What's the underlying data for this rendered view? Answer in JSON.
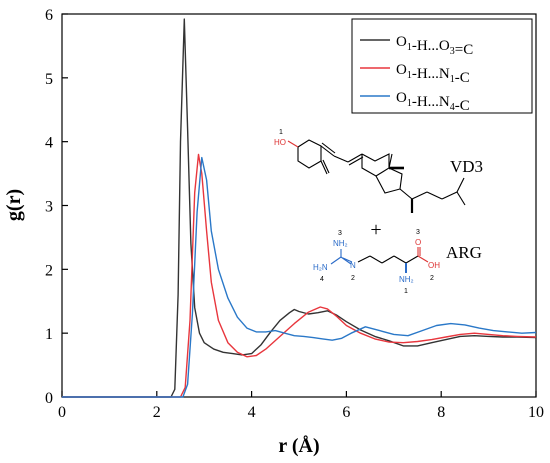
{
  "chart_data": {
    "type": "line",
    "xlabel": "r (Å)",
    "ylabel": "g(r)",
    "xlim": [
      0,
      10
    ],
    "ylim": [
      0,
      6
    ],
    "xticks": [
      "0",
      "2",
      "4",
      "6",
      "8",
      "10"
    ],
    "yticks": [
      "0",
      "1",
      "2",
      "3",
      "4",
      "5",
      "6"
    ],
    "grid": false,
    "legend_position": "top-right",
    "series": [
      {
        "name": "O1-H...O3=C",
        "legend": {
          "a": "O",
          "a_sub": "1",
          "b": "-H...O",
          "b_sub": "3",
          "c": "=C"
        },
        "color": "#333333",
        "points": [
          [
            0,
            0
          ],
          [
            2.3,
            0
          ],
          [
            2.38,
            0.12
          ],
          [
            2.45,
            1.6
          ],
          [
            2.5,
            4.0
          ],
          [
            2.58,
            5.92
          ],
          [
            2.65,
            4.2
          ],
          [
            2.72,
            2.4
          ],
          [
            2.8,
            1.4
          ],
          [
            2.9,
            1.0
          ],
          [
            3.0,
            0.85
          ],
          [
            3.2,
            0.75
          ],
          [
            3.4,
            0.7
          ],
          [
            3.6,
            0.68
          ],
          [
            3.8,
            0.66
          ],
          [
            4.0,
            0.68
          ],
          [
            4.2,
            0.82
          ],
          [
            4.4,
            1.02
          ],
          [
            4.6,
            1.2
          ],
          [
            4.8,
            1.32
          ],
          [
            4.9,
            1.37
          ],
          [
            5.0,
            1.34
          ],
          [
            5.2,
            1.3
          ],
          [
            5.4,
            1.32
          ],
          [
            5.6,
            1.35
          ],
          [
            5.8,
            1.28
          ],
          [
            6.0,
            1.18
          ],
          [
            6.3,
            1.05
          ],
          [
            6.6,
            0.95
          ],
          [
            6.9,
            0.88
          ],
          [
            7.2,
            0.8
          ],
          [
            7.5,
            0.8
          ],
          [
            7.8,
            0.85
          ],
          [
            8.1,
            0.9
          ],
          [
            8.4,
            0.95
          ],
          [
            8.7,
            0.96
          ],
          [
            9.0,
            0.95
          ],
          [
            9.3,
            0.94
          ],
          [
            9.6,
            0.94
          ],
          [
            10.0,
            0.93
          ]
        ]
      },
      {
        "name": "O1-H...N1-C",
        "legend": {
          "a": "O",
          "a_sub": "1",
          "b": "-H...N",
          "b_sub": "1",
          "c": "-C"
        },
        "color": "#e8363d",
        "points": [
          [
            0,
            0
          ],
          [
            2.5,
            0
          ],
          [
            2.6,
            0.15
          ],
          [
            2.7,
            1.2
          ],
          [
            2.8,
            3.2
          ],
          [
            2.88,
            3.8
          ],
          [
            2.95,
            3.5
          ],
          [
            3.05,
            2.6
          ],
          [
            3.15,
            1.8
          ],
          [
            3.3,
            1.2
          ],
          [
            3.5,
            0.85
          ],
          [
            3.7,
            0.7
          ],
          [
            3.9,
            0.63
          ],
          [
            4.1,
            0.65
          ],
          [
            4.3,
            0.75
          ],
          [
            4.6,
            0.95
          ],
          [
            4.9,
            1.15
          ],
          [
            5.2,
            1.33
          ],
          [
            5.45,
            1.41
          ],
          [
            5.6,
            1.38
          ],
          [
            5.8,
            1.26
          ],
          [
            6.0,
            1.12
          ],
          [
            6.3,
            1.0
          ],
          [
            6.6,
            0.91
          ],
          [
            6.9,
            0.86
          ],
          [
            7.2,
            0.85
          ],
          [
            7.5,
            0.87
          ],
          [
            7.8,
            0.9
          ],
          [
            8.1,
            0.94
          ],
          [
            8.4,
            0.98
          ],
          [
            8.7,
            1.0
          ],
          [
            9.0,
            0.98
          ],
          [
            9.3,
            0.96
          ],
          [
            9.6,
            0.95
          ],
          [
            10.0,
            0.94
          ]
        ]
      },
      {
        "name": "O1-H...N4-C",
        "legend": {
          "a": "O",
          "a_sub": "1",
          "b": "-H...N",
          "b_sub": "4",
          "c": "-C"
        },
        "color": "#2a78c8",
        "points": [
          [
            0,
            0
          ],
          [
            2.55,
            0
          ],
          [
            2.65,
            0.2
          ],
          [
            2.75,
            1.3
          ],
          [
            2.85,
            2.9
          ],
          [
            2.95,
            3.75
          ],
          [
            3.05,
            3.4
          ],
          [
            3.15,
            2.6
          ],
          [
            3.3,
            2.0
          ],
          [
            3.5,
            1.55
          ],
          [
            3.7,
            1.25
          ],
          [
            3.9,
            1.08
          ],
          [
            4.1,
            1.02
          ],
          [
            4.3,
            1.02
          ],
          [
            4.5,
            1.04
          ],
          [
            4.7,
            1.0
          ],
          [
            4.9,
            0.96
          ],
          [
            5.1,
            0.95
          ],
          [
            5.3,
            0.93
          ],
          [
            5.5,
            0.91
          ],
          [
            5.7,
            0.89
          ],
          [
            5.9,
            0.92
          ],
          [
            6.1,
            1.0
          ],
          [
            6.4,
            1.1
          ],
          [
            6.7,
            1.04
          ],
          [
            7.0,
            0.98
          ],
          [
            7.3,
            0.96
          ],
          [
            7.6,
            1.04
          ],
          [
            7.9,
            1.12
          ],
          [
            8.2,
            1.15
          ],
          [
            8.5,
            1.13
          ],
          [
            8.8,
            1.08
          ],
          [
            9.1,
            1.04
          ],
          [
            9.4,
            1.02
          ],
          [
            9.7,
            1.0
          ],
          [
            10.0,
            1.01
          ]
        ]
      }
    ],
    "inset": {
      "vd3_label": "VD3",
      "plus": "+",
      "arg_label": "ARG",
      "atoms": {
        "ho": "HO",
        "ho_index": "1",
        "nh2_top": "NH₂",
        "nh2_top_index": "3",
        "h2n": "H₂N",
        "h2n_index": "4",
        "n_mid": "N",
        "n_mid_index": "2",
        "carbonyl_o": "O",
        "carbonyl_o_index": "3",
        "oh": "OH",
        "oh_index": "2",
        "nh2_bottom": "NH₂",
        "nh2_bottom_index": "1"
      }
    }
  }
}
